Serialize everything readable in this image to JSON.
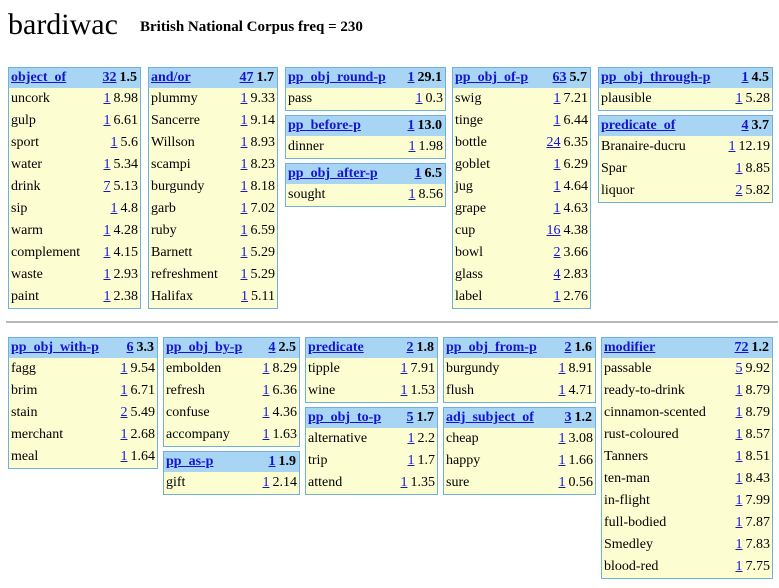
{
  "title": "bardiwac",
  "freq_label": "British National Corpus freq = 230",
  "panels": [
    {
      "tables": [
        {
          "rel": "object_of",
          "count": "32",
          "score": "1.5",
          "rows": [
            [
              "uncork",
              "1",
              "8.98"
            ],
            [
              "gulp",
              "1",
              "6.61"
            ],
            [
              "sport",
              "1",
              "5.6"
            ],
            [
              "water",
              "1",
              "5.34"
            ],
            [
              "drink",
              "7",
              "5.13"
            ],
            [
              "sip",
              "1",
              "4.8"
            ],
            [
              "warm",
              "1",
              "4.28"
            ],
            [
              "complement",
              "1",
              "4.15"
            ],
            [
              "waste",
              "1",
              "2.93"
            ],
            [
              "paint",
              "1",
              "2.38"
            ]
          ]
        }
      ]
    },
    {
      "tables": [
        {
          "rel": "and/or",
          "count": "47",
          "score": "1.7",
          "rows": [
            [
              "plummy",
              "1",
              "9.33"
            ],
            [
              "Sancerre",
              "1",
              "9.14"
            ],
            [
              "Willson",
              "1",
              "8.93"
            ],
            [
              "scampi",
              "1",
              "8.23"
            ],
            [
              "burgundy",
              "1",
              "8.18"
            ],
            [
              "garb",
              "1",
              "7.02"
            ],
            [
              "ruby",
              "1",
              "6.59"
            ],
            [
              "Barnett",
              "1",
              "5.29"
            ],
            [
              "refreshment",
              "1",
              "5.29"
            ],
            [
              "Halifax",
              "1",
              "5.11"
            ]
          ]
        }
      ]
    },
    {
      "tables": [
        {
          "rel": "pp_obj_round-p",
          "count": "1",
          "score": "29.1",
          "rows": [
            [
              "pass",
              "1",
              "0.3"
            ]
          ]
        },
        {
          "rel": "pp_before-p",
          "count": "1",
          "score": "13.0",
          "rows": [
            [
              "dinner",
              "1",
              "1.98"
            ]
          ]
        },
        {
          "rel": "pp_obj_after-p",
          "count": "1",
          "score": "6.5",
          "rows": [
            [
              "sought",
              "1",
              "8.56"
            ]
          ]
        }
      ]
    },
    {
      "tables": [
        {
          "rel": "pp_obj_of-p",
          "count": "63",
          "score": "5.7",
          "rows": [
            [
              "swig",
              "1",
              "7.21"
            ],
            [
              "tinge",
              "1",
              "6.44"
            ],
            [
              "bottle",
              "24",
              "6.35"
            ],
            [
              "goblet",
              "1",
              "6.29"
            ],
            [
              "jug",
              "1",
              "4.64"
            ],
            [
              "grape",
              "1",
              "4.63"
            ],
            [
              "cup",
              "16",
              "4.38"
            ],
            [
              "bowl",
              "2",
              "3.66"
            ],
            [
              "glass",
              "4",
              "2.83"
            ],
            [
              "label",
              "1",
              "2.76"
            ]
          ]
        }
      ]
    },
    {
      "tables": [
        {
          "rel": "pp_obj_through-p",
          "count": "1",
          "score": "4.5",
          "rows": [
            [
              "plausible",
              "1",
              "5.28"
            ]
          ]
        },
        {
          "rel": "predicate_of",
          "count": "4",
          "score": "3.7",
          "rows": [
            [
              "Branaire-ducru",
              "1",
              "12.19"
            ],
            [
              "Spar",
              "1",
              "8.85"
            ],
            [
              "liquor",
              "2",
              "5.82"
            ]
          ]
        }
      ]
    },
    {
      "tables": [
        {
          "rel": "pp_obj_with-p",
          "count": "6",
          "score": "3.3",
          "rows": [
            [
              "fagg",
              "1",
              "9.54"
            ],
            [
              "brim",
              "1",
              "6.71"
            ],
            [
              "stain",
              "2",
              "5.49"
            ],
            [
              "merchant",
              "1",
              "2.68"
            ],
            [
              "meal",
              "1",
              "1.64"
            ]
          ]
        }
      ]
    },
    {
      "tables": [
        {
          "rel": "pp_obj_by-p",
          "count": "4",
          "score": "2.5",
          "rows": [
            [
              "embolden",
              "1",
              "8.29"
            ],
            [
              "refresh",
              "1",
              "6.36"
            ],
            [
              "confuse",
              "1",
              "4.36"
            ],
            [
              "accompany",
              "1",
              "1.63"
            ]
          ]
        },
        {
          "rel": "pp_as-p",
          "count": "1",
          "score": "1.9",
          "rows": [
            [
              "gift",
              "1",
              "2.14"
            ]
          ]
        }
      ]
    },
    {
      "tables": [
        {
          "rel": "predicate",
          "count": "2",
          "score": "1.8",
          "rows": [
            [
              "tipple",
              "1",
              "7.91"
            ],
            [
              "wine",
              "1",
              "1.53"
            ]
          ]
        },
        {
          "rel": "pp_obj_to-p",
          "count": "5",
          "score": "1.7",
          "rows": [
            [
              "alternative",
              "1",
              "2.2"
            ],
            [
              "trip",
              "1",
              "1.7"
            ],
            [
              "attend",
              "1",
              "1.35"
            ]
          ]
        }
      ]
    },
    {
      "tables": [
        {
          "rel": "pp_obj_from-p",
          "count": "2",
          "score": "1.6",
          "rows": [
            [
              "burgundy",
              "1",
              "8.91"
            ],
            [
              "flush",
              "1",
              "4.71"
            ]
          ]
        },
        {
          "rel": "adj_subject_of",
          "count": "3",
          "score": "1.2",
          "rows": [
            [
              "cheap",
              "1",
              "3.08"
            ],
            [
              "happy",
              "1",
              "1.66"
            ],
            [
              "sure",
              "1",
              "0.56"
            ]
          ]
        }
      ]
    },
    {
      "tables": [
        {
          "rel": "modifier",
          "count": "72",
          "score": "1.2",
          "rows": [
            [
              "passable",
              "5",
              "9.92"
            ],
            [
              "ready-to-drink",
              "1",
              "8.79"
            ],
            [
              "cinnamon-scented",
              "1",
              "8.79"
            ],
            [
              "rust-coloured",
              "1",
              "8.57"
            ],
            [
              "Tanners",
              "1",
              "8.51"
            ],
            [
              "ten-man",
              "1",
              "8.43"
            ],
            [
              "in-flight",
              "1",
              "7.99"
            ],
            [
              "full-bodied",
              "1",
              "7.87"
            ],
            [
              "Smedley",
              "1",
              "7.83"
            ],
            [
              "blood-red",
              "1",
              "7.75"
            ]
          ]
        }
      ]
    }
  ]
}
